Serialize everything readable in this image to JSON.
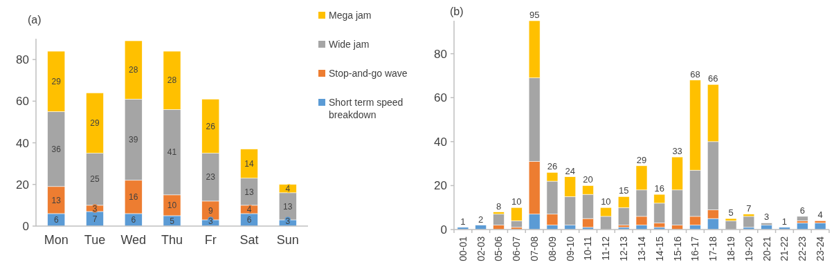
{
  "chart_data": [
    {
      "type": "bar",
      "title": "(a)",
      "stacked": true,
      "categories": [
        "Mon",
        "Tue",
        "Wed",
        "Thu",
        "Fr",
        "Sat",
        "Sun"
      ],
      "ylim": [
        0,
        90
      ],
      "yticks": [
        0,
        20,
        40,
        60,
        80
      ],
      "grid": false,
      "legend": "top right",
      "series": [
        {
          "name": "Short term speed breakdown",
          "color": "#5b9bd5",
          "values": [
            6,
            7,
            6,
            5,
            3,
            6,
            3
          ],
          "value_labels": [
            "6",
            "7",
            "6",
            "5",
            "3",
            "6",
            "3"
          ]
        },
        {
          "name": "Stop-and-go wave",
          "color": "#ed7d31",
          "values": [
            13,
            3,
            16,
            10,
            9,
            4,
            0
          ],
          "value_labels": [
            "13",
            "3",
            "16",
            "10",
            "9",
            "4",
            null
          ]
        },
        {
          "name": "Wide jam",
          "color": "#a5a5a5",
          "values": [
            36,
            25,
            39,
            41,
            23,
            13,
            13
          ],
          "value_labels": [
            "36",
            "25",
            "39",
            "41",
            "23",
            "13",
            "13"
          ]
        },
        {
          "name": "Mega jam",
          "color": "#ffc000",
          "values": [
            29,
            29,
            28,
            28,
            26,
            14,
            4
          ],
          "value_labels": [
            "29",
            "29",
            "28",
            "28",
            "26",
            "14",
            "4"
          ]
        }
      ]
    },
    {
      "type": "bar",
      "title": "(b)",
      "stacked": true,
      "categories": [
        "00-01",
        "02-03",
        "05-06",
        "06-07",
        "07-08",
        "08-09",
        "09-10",
        "10-11",
        "11-12",
        "12-13",
        "13-14",
        "14-15",
        "15-16",
        "16-17",
        "17-18",
        "18-19",
        "19-20",
        "20-21",
        "21-22",
        "22-23",
        "23-24"
      ],
      "ylim": [
        0,
        95
      ],
      "yticks": [
        0,
        20,
        40,
        60,
        80
      ],
      "grid": false,
      "series": [
        {
          "color": "#5b9bd5",
          "values": [
            1,
            2,
            0,
            0,
            7,
            2,
            2,
            1,
            0,
            1,
            2,
            1,
            0,
            2,
            5,
            0,
            1,
            2,
            1,
            3,
            3
          ]
        },
        {
          "color": "#ed7d31",
          "values": [
            0,
            0,
            2,
            1,
            24,
            5,
            0,
            4,
            0,
            1,
            4,
            2,
            2,
            4,
            4,
            0,
            0,
            0,
            0,
            1,
            1
          ]
        },
        {
          "color": "#a5a5a5",
          "values": [
            0,
            0,
            5,
            3,
            38,
            15,
            13,
            11,
            6,
            8,
            12,
            9,
            16,
            21,
            31,
            4,
            5,
            1,
            0,
            2,
            0
          ]
        },
        {
          "color": "#ffc000",
          "values": [
            0,
            0,
            1,
            6,
            26,
            4,
            9,
            4,
            4,
            5,
            11,
            4,
            15,
            41,
            26,
            1,
            1,
            0,
            0,
            0,
            0
          ]
        }
      ],
      "totals": [
        "1",
        "2",
        "8",
        "10",
        "95",
        "26",
        "24",
        "20",
        "10",
        "15",
        "29",
        "16",
        "33",
        "68",
        "66",
        "5",
        "7",
        "3",
        "1",
        "6",
        "4"
      ]
    }
  ]
}
